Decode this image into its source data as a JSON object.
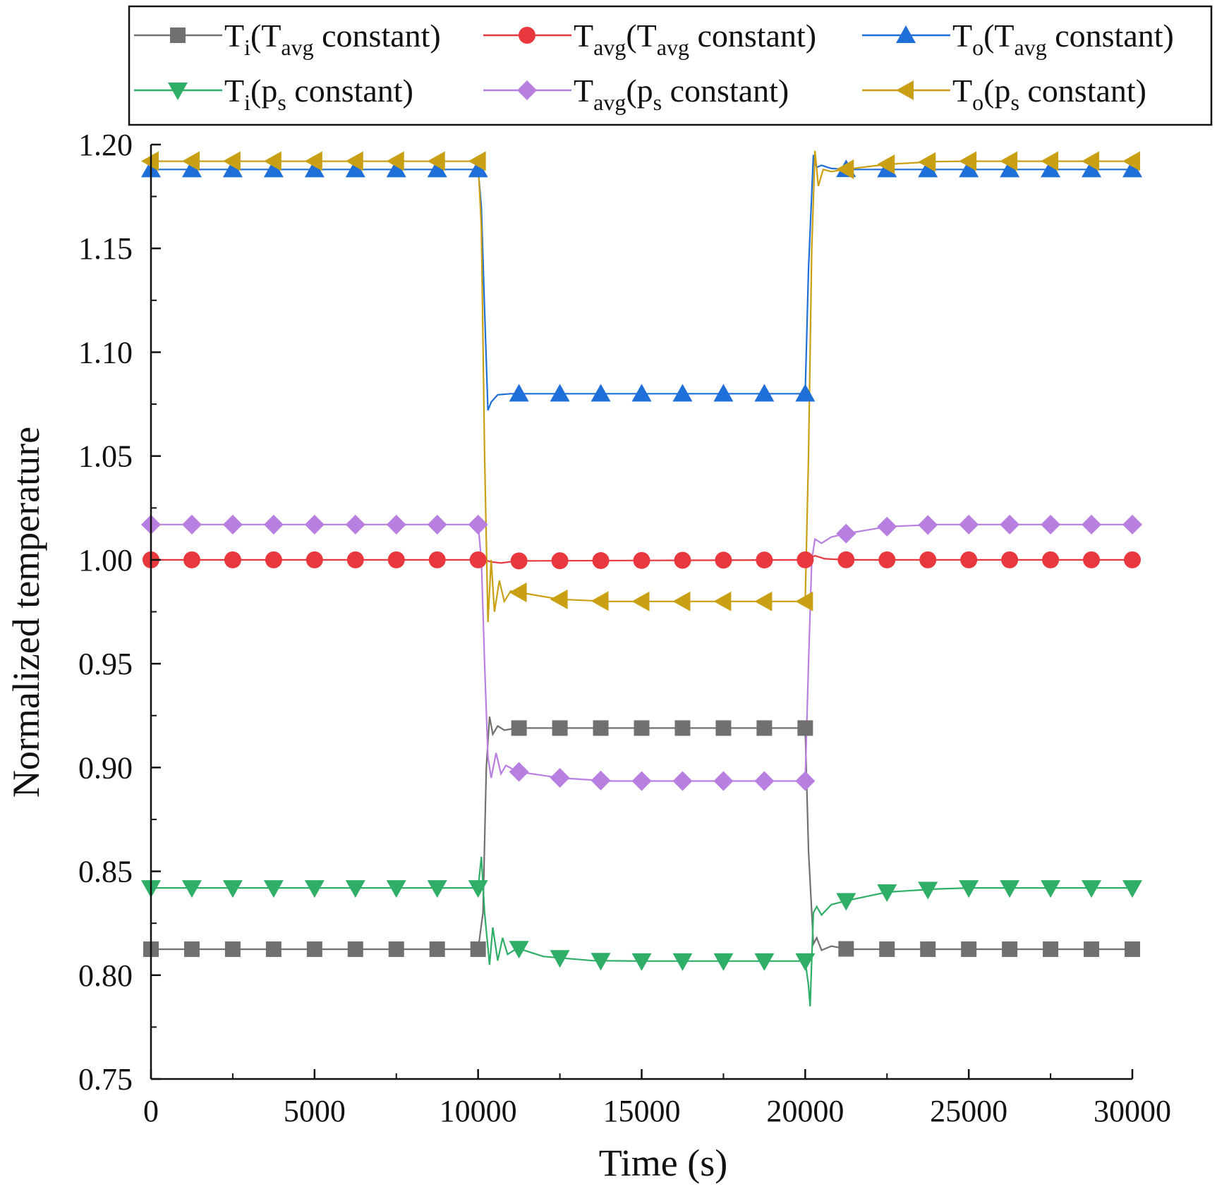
{
  "chart_data": {
    "type": "line",
    "title": "",
    "xlabel": "Time (s)",
    "ylabel": "Normalized temperature",
    "xlim": [
      0,
      30000
    ],
    "ylim": [
      0.75,
      1.2
    ],
    "xticks": [
      0,
      5000,
      10000,
      15000,
      20000,
      25000,
      30000
    ],
    "xtick_labels": [
      "0",
      "5000",
      "10000",
      "15000",
      "20000",
      "25000",
      "30000"
    ],
    "yticks": [
      0.75,
      0.8,
      0.85,
      0.9,
      0.95,
      1.0,
      1.05,
      1.1,
      1.15,
      1.2
    ],
    "ytick_labels": [
      "0.75",
      "0.80",
      "0.85",
      "0.90",
      "0.95",
      "1.00",
      "1.05",
      "1.10",
      "1.15",
      "1.20"
    ],
    "grid": false,
    "legend_position": "top",
    "marker_spacing": 1250,
    "series": [
      {
        "name": "Ti(Tavg constant)",
        "legend": {
          "main": "T",
          "sub": "i",
          "mid": "(T",
          "sub2": "avg",
          "tail": " constant)"
        },
        "color": "#707070",
        "marker": "square",
        "points": [
          [
            0,
            0.8125
          ],
          [
            10000,
            0.8125
          ],
          [
            10150,
            0.83
          ],
          [
            10250,
            0.9
          ],
          [
            10350,
            0.9245
          ],
          [
            10450,
            0.916
          ],
          [
            10600,
            0.92
          ],
          [
            10800,
            0.918
          ],
          [
            11200,
            0.919
          ],
          [
            20000,
            0.919
          ],
          [
            20100,
            0.86
          ],
          [
            20250,
            0.815
          ],
          [
            20350,
            0.818
          ],
          [
            20500,
            0.812
          ],
          [
            20800,
            0.814
          ],
          [
            21300,
            0.8125
          ],
          [
            30000,
            0.8125
          ]
        ]
      },
      {
        "name": "Tavg(Tavg constant)",
        "legend": {
          "main": "T",
          "sub": "avg",
          "mid": "(T",
          "sub2": "avg",
          "tail": " constant)"
        },
        "color": "#e8383d",
        "marker": "circle",
        "points": [
          [
            0,
            1.0
          ],
          [
            10000,
            1.0
          ],
          [
            10200,
            1.0
          ],
          [
            10400,
            0.999
          ],
          [
            10700,
            0.9985
          ],
          [
            11200,
            0.9995
          ],
          [
            20000,
            1.0
          ],
          [
            20300,
            1.002
          ],
          [
            20600,
            1.0005
          ],
          [
            21300,
            1.0
          ],
          [
            30000,
            1.0
          ]
        ]
      },
      {
        "name": "To(Tavg constant)",
        "legend": {
          "main": "T",
          "sub": "o",
          "mid": "(T",
          "sub2": "avg",
          "tail": " constant)"
        },
        "color": "#1f6fd8",
        "marker": "triangle-up",
        "points": [
          [
            0,
            1.188
          ],
          [
            10000,
            1.188
          ],
          [
            10100,
            1.17
          ],
          [
            10200,
            1.12
          ],
          [
            10300,
            1.072
          ],
          [
            10400,
            1.076
          ],
          [
            10600,
            1.0795
          ],
          [
            11000,
            1.08
          ],
          [
            20000,
            1.08
          ],
          [
            20100,
            1.14
          ],
          [
            20250,
            1.195
          ],
          [
            20350,
            1.189
          ],
          [
            20500,
            1.19
          ],
          [
            20800,
            1.1885
          ],
          [
            21300,
            1.188
          ],
          [
            30000,
            1.188
          ]
        ]
      },
      {
        "name": "Ti(ps constant)",
        "legend": {
          "main": "T",
          "sub": "i",
          "mid": "(p",
          "sub2": "s",
          "tail": " constant)"
        },
        "color": "#2fae67",
        "marker": "triangle-down",
        "points": [
          [
            0,
            0.842
          ],
          [
            10000,
            0.842
          ],
          [
            10100,
            0.857
          ],
          [
            10200,
            0.83
          ],
          [
            10350,
            0.805
          ],
          [
            10450,
            0.823
          ],
          [
            10600,
            0.807
          ],
          [
            10750,
            0.818
          ],
          [
            10900,
            0.81
          ],
          [
            11200,
            0.813
          ],
          [
            12000,
            0.809
          ],
          [
            13500,
            0.807
          ],
          [
            15000,
            0.8068
          ],
          [
            20000,
            0.8068
          ],
          [
            20100,
            0.795
          ],
          [
            20150,
            0.785
          ],
          [
            20250,
            0.83
          ],
          [
            20350,
            0.833
          ],
          [
            20500,
            0.829
          ],
          [
            20800,
            0.834
          ],
          [
            21300,
            0.836
          ],
          [
            22500,
            0.84
          ],
          [
            24000,
            0.8415
          ],
          [
            25000,
            0.842
          ],
          [
            30000,
            0.842
          ]
        ]
      },
      {
        "name": "Tavg(ps constant)",
        "legend": {
          "main": "T",
          "sub": "avg",
          "mid": "(p",
          "sub2": "s",
          "tail": " constant)"
        },
        "color": "#b87fe0",
        "marker": "diamond",
        "points": [
          [
            0,
            1.017
          ],
          [
            10000,
            1.017
          ],
          [
            10100,
            1.0
          ],
          [
            10200,
            0.95
          ],
          [
            10300,
            0.905
          ],
          [
            10400,
            0.895
          ],
          [
            10550,
            0.907
          ],
          [
            10700,
            0.897
          ],
          [
            10850,
            0.901
          ],
          [
            11200,
            0.898
          ],
          [
            12500,
            0.895
          ],
          [
            14000,
            0.8935
          ],
          [
            15000,
            0.8935
          ],
          [
            20000,
            0.8935
          ],
          [
            20100,
            0.95
          ],
          [
            20200,
            1.0
          ],
          [
            20300,
            1.01
          ],
          [
            20500,
            1.008
          ],
          [
            20800,
            1.011
          ],
          [
            21200,
            1.0125
          ],
          [
            22500,
            1.016
          ],
          [
            24000,
            1.017
          ],
          [
            30000,
            1.017
          ]
        ]
      },
      {
        "name": "To(ps constant)",
        "legend": {
          "main": "T",
          "sub": "o",
          "mid": "(p",
          "sub2": "s",
          "tail": " constant)"
        },
        "color": "#c9a013",
        "marker": "triangle-left",
        "points": [
          [
            0,
            1.192
          ],
          [
            10000,
            1.192
          ],
          [
            10100,
            1.16
          ],
          [
            10200,
            1.05
          ],
          [
            10300,
            0.97
          ],
          [
            10400,
            1.0
          ],
          [
            10500,
            0.975
          ],
          [
            10650,
            0.99
          ],
          [
            10800,
            0.98
          ],
          [
            11000,
            0.985
          ],
          [
            12500,
            0.981
          ],
          [
            14000,
            0.98
          ],
          [
            15000,
            0.98
          ],
          [
            20000,
            0.98
          ],
          [
            20100,
            1.05
          ],
          [
            20200,
            1.15
          ],
          [
            20300,
            1.197
          ],
          [
            20400,
            1.18
          ],
          [
            20550,
            1.188
          ],
          [
            20800,
            1.187
          ],
          [
            21200,
            1.188
          ],
          [
            22500,
            1.1905
          ],
          [
            24000,
            1.1918
          ],
          [
            25000,
            1.192
          ],
          [
            30000,
            1.192
          ]
        ]
      }
    ]
  }
}
